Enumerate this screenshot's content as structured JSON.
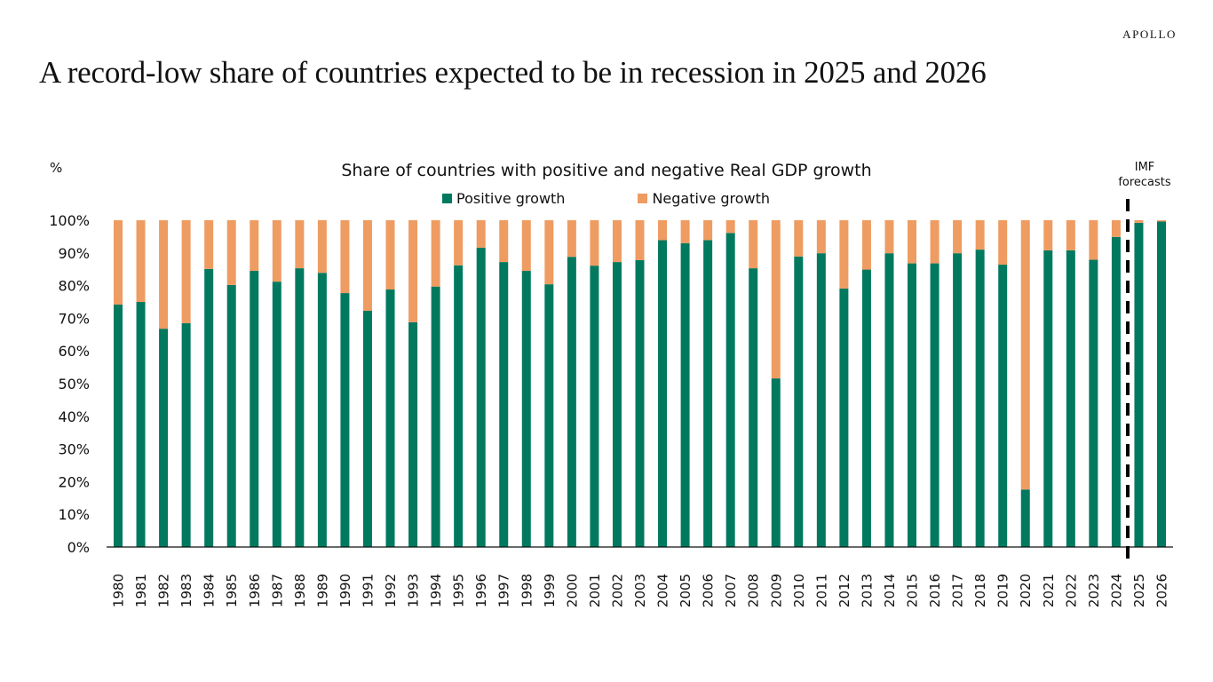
{
  "brand": "APOLLO",
  "headline": "A record-low share of countries expected to be in recession in 2025 and 2026",
  "chart_data": {
    "type": "bar",
    "stacked": true,
    "title": "Share of countries with positive and negative Real GDP growth",
    "ylabel": "%",
    "xlabel": "",
    "ylim": [
      0,
      100
    ],
    "yticks": [
      "0%",
      "10%",
      "20%",
      "30%",
      "40%",
      "50%",
      "60%",
      "70%",
      "80%",
      "90%",
      "100%"
    ],
    "grid": false,
    "legend_position": "top-center",
    "categories": [
      "1980",
      "1981",
      "1982",
      "1983",
      "1984",
      "1985",
      "1986",
      "1987",
      "1988",
      "1989",
      "1990",
      "1991",
      "1992",
      "1993",
      "1994",
      "1995",
      "1996",
      "1997",
      "1998",
      "1999",
      "2000",
      "2001",
      "2002",
      "2003",
      "2004",
      "2005",
      "2006",
      "2007",
      "2008",
      "2009",
      "2010",
      "2011",
      "2012",
      "2013",
      "2014",
      "2015",
      "2016",
      "2017",
      "2018",
      "2019",
      "2020",
      "2021",
      "2022",
      "2023",
      "2024",
      "2025",
      "2026"
    ],
    "series": [
      {
        "name": "Positive growth",
        "color": "#00795F",
        "values": [
          74.2,
          75.0,
          66.8,
          68.5,
          85.1,
          80.2,
          84.5,
          81.2,
          85.3,
          83.9,
          77.7,
          72.3,
          78.8,
          68.8,
          79.7,
          86.2,
          91.6,
          87.2,
          84.5,
          80.4,
          88.8,
          86.1,
          87.2,
          87.8,
          93.9,
          93.0,
          93.9,
          96.1,
          85.3,
          51.6,
          88.9,
          89.9,
          79.1,
          84.9,
          89.9,
          86.8,
          86.8,
          89.9,
          91.0,
          86.4,
          17.6,
          90.8,
          90.8,
          87.9,
          94.9,
          99.2,
          99.6
        ]
      },
      {
        "name": "Negative growth",
        "color": "#EE9C62",
        "values": [
          25.8,
          25.0,
          33.2,
          31.5,
          14.9,
          19.8,
          15.5,
          18.8,
          14.7,
          16.1,
          22.3,
          27.7,
          21.2,
          31.2,
          20.3,
          13.8,
          8.4,
          12.8,
          15.5,
          19.6,
          11.2,
          13.9,
          12.8,
          12.2,
          6.1,
          7.0,
          6.1,
          3.9,
          14.7,
          48.4,
          11.1,
          10.1,
          20.9,
          15.1,
          10.1,
          13.2,
          13.2,
          10.1,
          9.0,
          13.6,
          82.4,
          9.2,
          9.2,
          12.1,
          5.1,
          0.8,
          0.4
        ]
      }
    ],
    "annotations": [
      {
        "text_lines": [
          "IMF",
          "forecasts"
        ],
        "type": "dashed-vertical-line",
        "between": [
          "2024",
          "2025"
        ]
      }
    ]
  }
}
